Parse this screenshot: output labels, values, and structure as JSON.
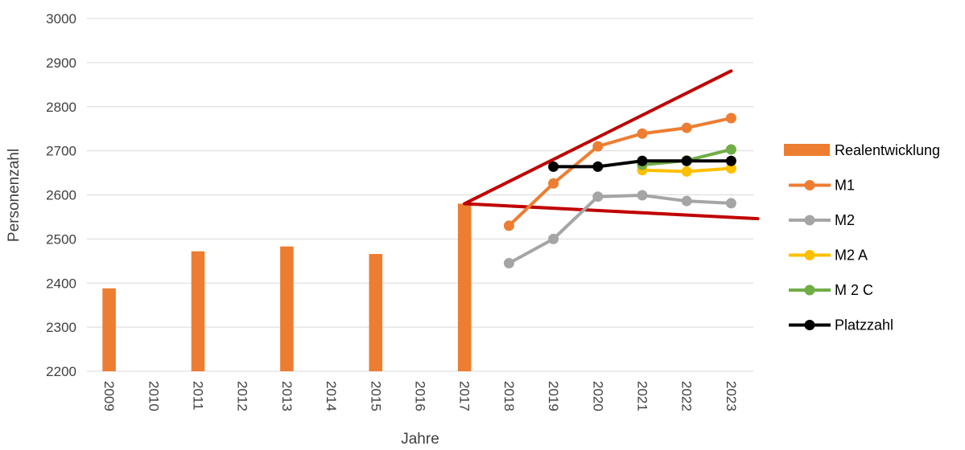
{
  "chart_data": {
    "type": "bar",
    "title": "",
    "xlabel": "Jahre",
    "ylabel": "Personenzahl",
    "ylim": [
      2200,
      3000
    ],
    "y_ticks": [
      2200,
      2300,
      2400,
      2500,
      2600,
      2700,
      2800,
      2900,
      3000
    ],
    "grid": true,
    "legend_position": "right",
    "categories": [
      "2009",
      "2010",
      "2011",
      "2012",
      "2013",
      "2014",
      "2015",
      "2016",
      "2017",
      "2018",
      "2019",
      "2020",
      "2021",
      "2022",
      "2023"
    ],
    "series": [
      {
        "name": "Realentwicklung",
        "kind": "bar",
        "color": "#ED7D31",
        "values": [
          2388,
          null,
          2472,
          null,
          2483,
          null,
          2466,
          null,
          2580,
          null,
          null,
          null,
          null,
          null,
          null
        ]
      },
      {
        "name": "M1",
        "kind": "line",
        "color": "#ED7D31",
        "values": [
          null,
          null,
          null,
          null,
          null,
          null,
          null,
          null,
          null,
          2530,
          2626,
          2710,
          2739,
          2752,
          2774
        ]
      },
      {
        "name": "M2",
        "kind": "line",
        "color": "#A5A5A5",
        "values": [
          null,
          null,
          null,
          null,
          null,
          null,
          null,
          null,
          null,
          2445,
          2500,
          2596,
          2599,
          2586,
          2581
        ]
      },
      {
        "name": "M2 A",
        "kind": "line",
        "color": "#FFC000",
        "values": [
          null,
          null,
          null,
          null,
          null,
          null,
          null,
          null,
          null,
          null,
          null,
          null,
          2656,
          2653,
          2660
        ]
      },
      {
        "name": "M 2 C",
        "kind": "line",
        "color": "#70AD47",
        "values": [
          null,
          null,
          null,
          null,
          null,
          null,
          null,
          null,
          null,
          null,
          null,
          null,
          2668,
          2678,
          2703
        ]
      },
      {
        "name": "Platzzahl",
        "kind": "line",
        "color": "#000000",
        "values": [
          null,
          null,
          null,
          null,
          null,
          null,
          null,
          null,
          null,
          null,
          2664,
          2664,
          2677,
          2677,
          2677
        ]
      }
    ],
    "trend_lines": [
      {
        "color": "#C00000",
        "from": {
          "x": "2017",
          "y": 2580
        },
        "to": {
          "x": "2023",
          "y": 2881
        }
      },
      {
        "color": "#C00000",
        "from": {
          "x": "2017",
          "y": 2580
        },
        "to": {
          "x": "2023.6",
          "y": 2546
        }
      }
    ]
  }
}
